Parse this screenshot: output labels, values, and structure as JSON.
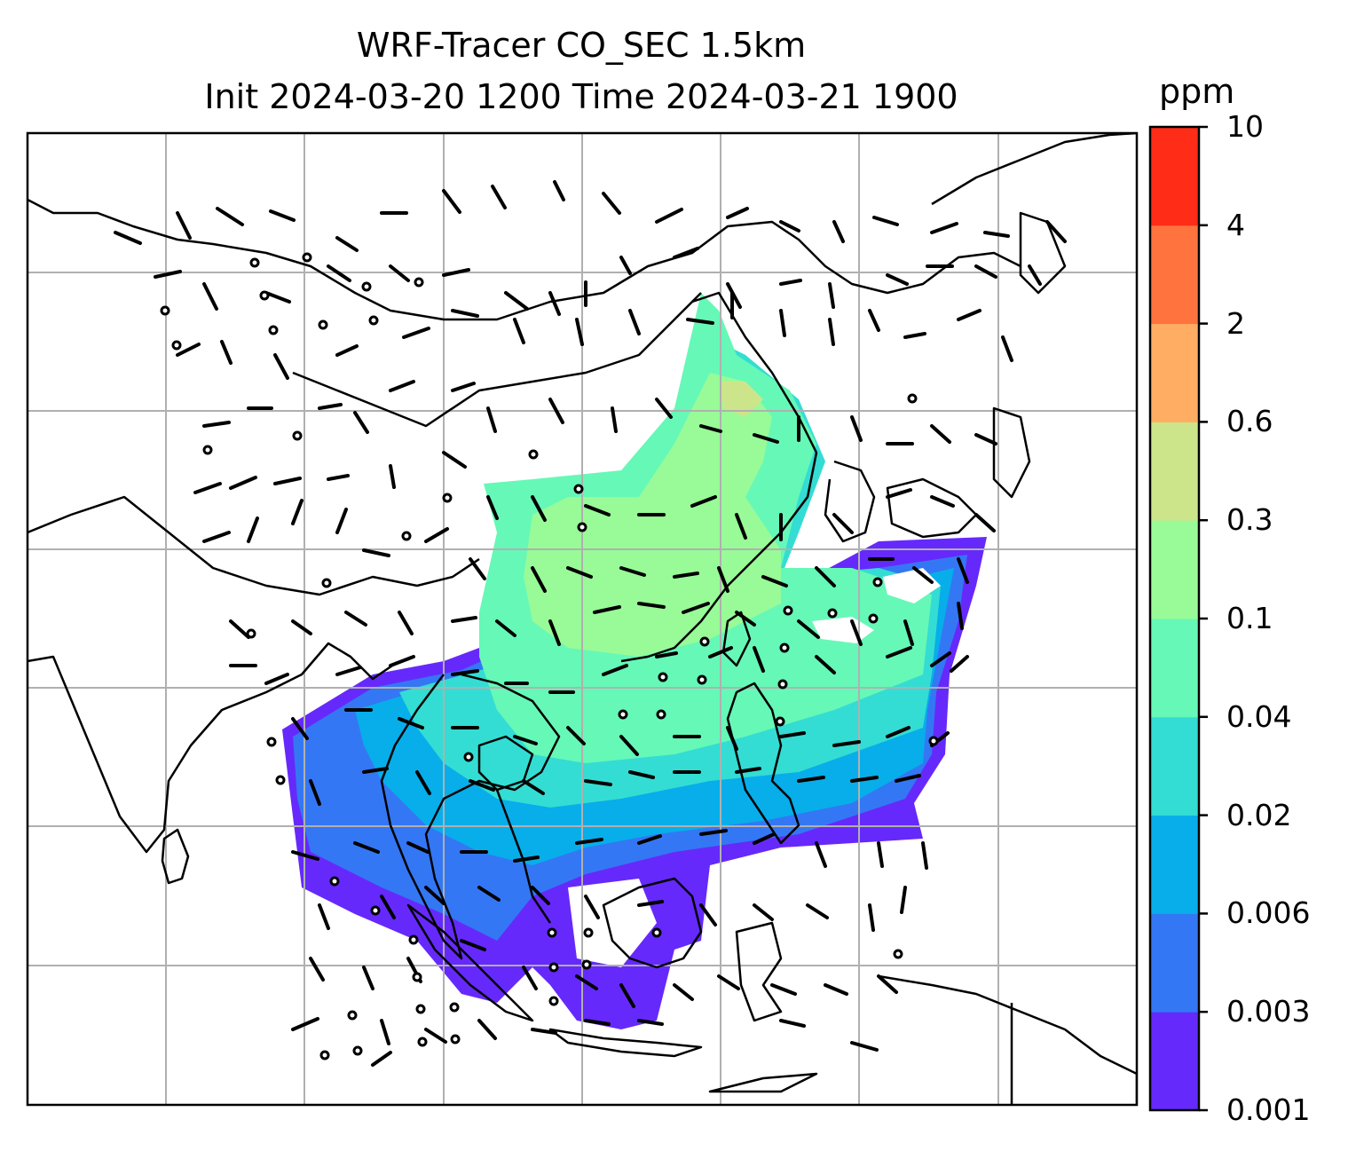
{
  "title_line1": "WRF-Tracer CO_SEC 1.5km",
  "title_line2": "Init 2024-03-20 1200 Time 2024-03-21 1900",
  "colorbar": {
    "unit": "ppm",
    "levels": [
      "0.001",
      "0.003",
      "0.006",
      "0.02",
      "0.04",
      "0.1",
      "0.3",
      "0.6",
      "2",
      "4",
      "10"
    ],
    "colors": [
      "#6629fb",
      "#3477f4",
      "#07aeea",
      "#33ddd3",
      "#66f8b7",
      "#98fb97",
      "#cde58a",
      "#fead63",
      "#ff733e",
      "#ff2c17"
    ]
  },
  "map": {
    "gridlines": true,
    "grid_color": "#b0b0b0",
    "coastline_color": "#000000",
    "wind_barb_color": "#000000"
  }
}
